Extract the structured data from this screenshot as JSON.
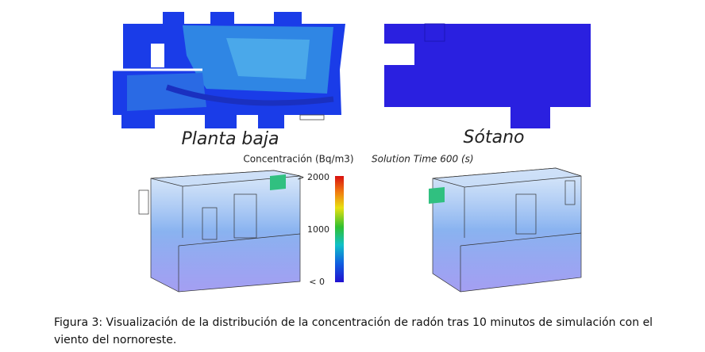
{
  "figure": {
    "panels": [
      {
        "label": "Planta baja"
      },
      {
        "label": "Sótano"
      }
    ],
    "colorbar": {
      "title": "Concentración (Bq/m3)",
      "labels": [
        "> 2000",
        "1000",
        "< 0"
      ]
    },
    "solution_time": "Solution Time 600 (s)"
  },
  "caption": "Figura 3: Visualización de la distribución de la concentración de radón tras 10 minutos de simulación con el viento del nornoreste."
}
